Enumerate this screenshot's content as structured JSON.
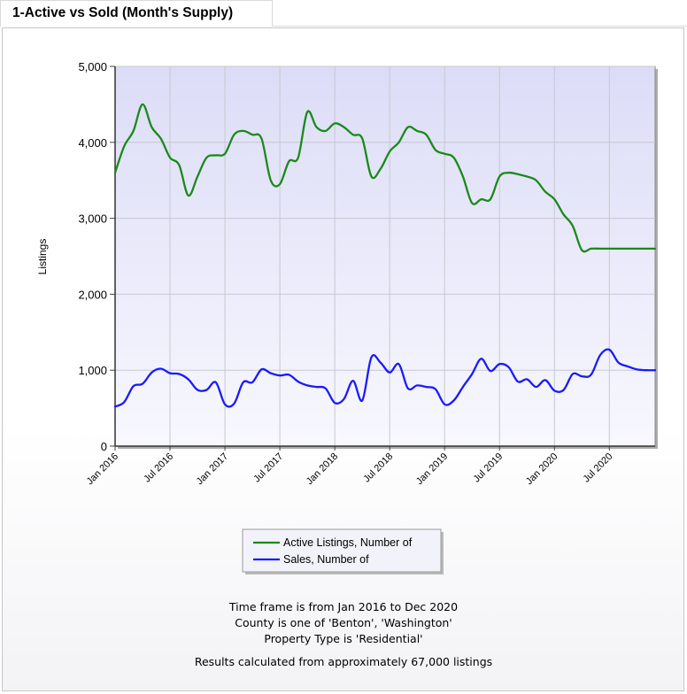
{
  "tab": {
    "title": "1-Active vs Sold (Month's Supply)"
  },
  "colors": {
    "active": "#1a8a1a",
    "sales": "#1a1aff",
    "plot_bg_top": "#dcdcf7",
    "plot_bg_bottom": "#f8f8fe",
    "grid": "#c8c8d0"
  },
  "footer": {
    "line1": "Time frame is from Jan 2016 to Dec 2020",
    "line2": "County is one of 'Benton', 'Washington'",
    "line3": "Property Type is 'Residential'",
    "line4": "Results calculated from approximately 67,000 listings"
  },
  "chart_data": {
    "type": "line",
    "ylabel": "Listings",
    "xlabel": "",
    "ylim": [
      0,
      5000
    ],
    "yticks": [
      0,
      1000,
      2000,
      3000,
      4000,
      5000
    ],
    "ytick_labels": [
      "0",
      "1,000",
      "2,000",
      "3,000",
      "4,000",
      "5,000"
    ],
    "xtick_labels": [
      "Jan 2016",
      "Jul 2016",
      "Jan 2017",
      "Jul 2017",
      "Jan 2018",
      "Jul 2018",
      "Jan 2019",
      "Jul 2019",
      "Jan 2020",
      "Jul 2020"
    ],
    "grid": true,
    "legend_position": "bottom-center",
    "x": [
      "Jan 2016",
      "Feb 2016",
      "Mar 2016",
      "Apr 2016",
      "May 2016",
      "Jun 2016",
      "Jul 2016",
      "Aug 2016",
      "Sep 2016",
      "Oct 2016",
      "Nov 2016",
      "Dec 2016",
      "Jan 2017",
      "Feb 2017",
      "Mar 2017",
      "Apr 2017",
      "May 2017",
      "Jun 2017",
      "Jul 2017",
      "Aug 2017",
      "Sep 2017",
      "Oct 2017",
      "Nov 2017",
      "Dec 2017",
      "Jan 2018",
      "Feb 2018",
      "Mar 2018",
      "Apr 2018",
      "May 2018",
      "Jun 2018",
      "Jul 2018",
      "Aug 2018",
      "Sep 2018",
      "Oct 2018",
      "Nov 2018",
      "Dec 2018",
      "Jan 2019",
      "Feb 2019",
      "Mar 2019",
      "Apr 2019",
      "May 2019",
      "Jun 2019",
      "Jul 2019",
      "Aug 2019",
      "Sep 2019",
      "Oct 2019",
      "Nov 2019",
      "Dec 2019",
      "Jan 2020",
      "Feb 2020",
      "Mar 2020",
      "Apr 2020",
      "May 2020",
      "Jun 2020",
      "Jul 2020",
      "Aug 2020",
      "Sep 2020",
      "Oct 2020",
      "Nov 2020",
      "Dec 2020"
    ],
    "series": [
      {
        "name": "Active Listings, Number of",
        "values": [
          3600,
          3950,
          4150,
          4500,
          4200,
          4050,
          3800,
          3700,
          3300,
          3550,
          3800,
          3830,
          3850,
          4100,
          4150,
          4100,
          4050,
          3500,
          3450,
          3750,
          3800,
          4400,
          4200,
          4150,
          4250,
          4200,
          4100,
          4050,
          3550,
          3650,
          3880,
          4000,
          4200,
          4150,
          4100,
          3900,
          3850,
          3800,
          3550,
          3200,
          3250,
          3250,
          3550,
          3600,
          3580,
          3550,
          3500,
          3350,
          3250,
          3050,
          2900,
          2580,
          2600,
          2600,
          2600,
          2600,
          2600,
          2600,
          2600,
          2600
        ]
      },
      {
        "name": "Sales, Number of",
        "values": [
          520,
          580,
          790,
          820,
          970,
          1020,
          960,
          950,
          880,
          740,
          740,
          840,
          550,
          560,
          840,
          840,
          1010,
          960,
          930,
          940,
          850,
          800,
          780,
          760,
          570,
          620,
          860,
          600,
          1170,
          1100,
          970,
          1080,
          760,
          800,
          780,
          750,
          550,
          600,
          780,
          950,
          1150,
          990,
          1080,
          1040,
          850,
          880,
          780,
          870,
          730,
          740,
          950,
          920,
          940,
          1200,
          1270,
          1100,
          1050,
          1010,
          1000,
          1000
        ]
      }
    ]
  }
}
